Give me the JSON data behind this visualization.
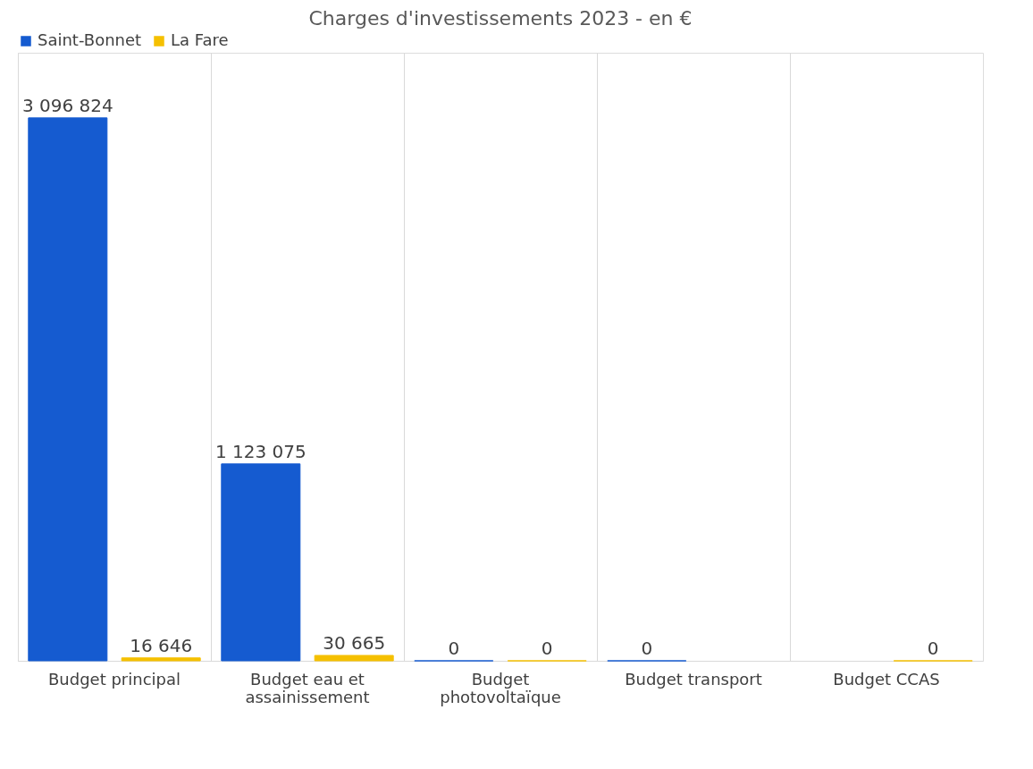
{
  "chart_data": {
    "type": "bar",
    "title": "Charges d'investissements 2023 - en €",
    "categories": [
      "Budget principal",
      "Budget eau et assainissement",
      "Budget photovoltaïque",
      "Budget transport",
      "Budget CCAS"
    ],
    "series": [
      {
        "name": "Saint-Bonnet",
        "color": "#155bd0",
        "values": [
          3096824,
          1123075,
          0,
          0,
          null
        ],
        "value_labels": [
          "3 096 824",
          "1 123 075",
          "0",
          "0",
          null
        ]
      },
      {
        "name": "La Fare",
        "color": "#f5c000",
        "values": [
          16646,
          30665,
          0,
          null,
          0
        ],
        "value_labels": [
          "16 646",
          "30 665",
          "0",
          null,
          "0"
        ]
      }
    ],
    "grid": "x",
    "legend": "top"
  }
}
